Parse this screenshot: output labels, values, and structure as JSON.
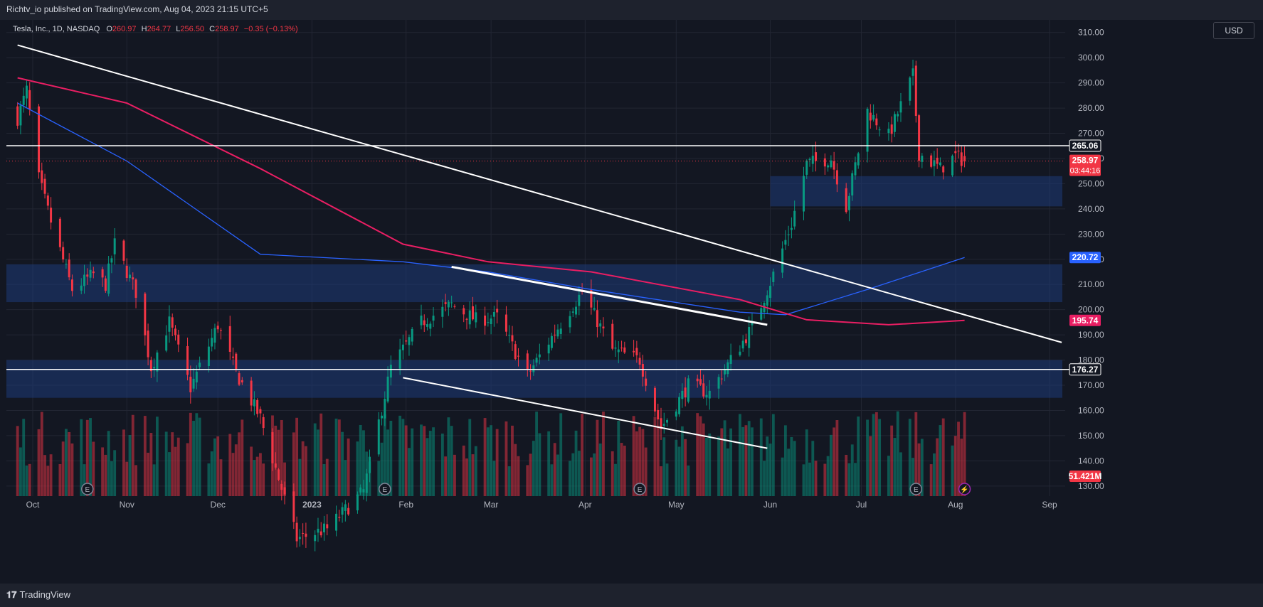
{
  "publication": "Richtv_io published on TradingView.com, Aug 04, 2023 21:15 UTC+5",
  "legend": {
    "symbol": "Tesla, Inc., 1D, NASDAQ",
    "o_label": "O",
    "o": "260.97",
    "h_label": "H",
    "h": "264.77",
    "l_label": "L",
    "l": "256.50",
    "c_label": "C",
    "c": "258.97",
    "chg": "−0.35 (−0.13%)"
  },
  "currency": "USD",
  "footer_brand": "TradingView",
  "colors": {
    "background": "#131722",
    "up": "#089981",
    "down": "#f23645",
    "ma_blue": "#2962ff",
    "ma_pink": "#e91e63",
    "zone": "#1e3a78",
    "grid": "#222633"
  },
  "chart_data": {
    "type": "candlestick",
    "symbol": "TSLA",
    "interval": "1D",
    "ylim": [
      126,
      315
    ],
    "y_ticks": [
      130,
      140,
      150,
      160,
      170,
      180,
      190,
      200,
      210,
      220,
      230,
      240,
      250,
      260,
      270,
      280,
      290,
      300,
      310
    ],
    "x_ticks": [
      {
        "label": "Oct",
        "date": "2022-10-01"
      },
      {
        "label": "Nov",
        "date": "2022-11-01"
      },
      {
        "label": "Dec",
        "date": "2022-12-01"
      },
      {
        "label": "2023",
        "date": "2023-01-01"
      },
      {
        "label": "Feb",
        "date": "2023-02-01"
      },
      {
        "label": "Mar",
        "date": "2023-03-01"
      },
      {
        "label": "Apr",
        "date": "2023-04-01"
      },
      {
        "label": "May",
        "date": "2023-05-01"
      },
      {
        "label": "Jun",
        "date": "2023-06-01"
      },
      {
        "label": "Jul",
        "date": "2023-07-01"
      },
      {
        "label": "Aug",
        "date": "2023-08-01"
      },
      {
        "label": "Sep",
        "date": "2023-09-01"
      }
    ],
    "ohlc_anchors": [
      {
        "date": "2022-09-26",
        "close": 276
      },
      {
        "date": "2022-09-29",
        "close": 287
      },
      {
        "date": "2022-10-03",
        "close": 252
      },
      {
        "date": "2022-10-07",
        "close": 235
      },
      {
        "date": "2022-10-14",
        "close": 208
      },
      {
        "date": "2022-10-21",
        "close": 214
      },
      {
        "date": "2022-10-25",
        "close": 210
      },
      {
        "date": "2022-10-28",
        "close": 226
      },
      {
        "date": "2022-11-04",
        "close": 207
      },
      {
        "date": "2022-11-09",
        "close": 177
      },
      {
        "date": "2022-11-15",
        "close": 195
      },
      {
        "date": "2022-11-22",
        "close": 169
      },
      {
        "date": "2022-12-01",
        "close": 194
      },
      {
        "date": "2022-12-07",
        "close": 175
      },
      {
        "date": "2022-12-15",
        "close": 157
      },
      {
        "date": "2022-12-27",
        "close": 109
      },
      {
        "date": "2023-01-06",
        "close": 113
      },
      {
        "date": "2023-01-18",
        "close": 128
      },
      {
        "date": "2023-01-27",
        "close": 177
      },
      {
        "date": "2023-02-06",
        "close": 195
      },
      {
        "date": "2023-02-16",
        "close": 202
      },
      {
        "date": "2023-02-24",
        "close": 196
      },
      {
        "date": "2023-03-03",
        "close": 197
      },
      {
        "date": "2023-03-13",
        "close": 174
      },
      {
        "date": "2023-03-22",
        "close": 191
      },
      {
        "date": "2023-03-31",
        "close": 207
      },
      {
        "date": "2023-04-10",
        "close": 184
      },
      {
        "date": "2023-04-19",
        "close": 180
      },
      {
        "date": "2023-04-26",
        "close": 153
      },
      {
        "date": "2023-05-05",
        "close": 170
      },
      {
        "date": "2023-05-12",
        "close": 167
      },
      {
        "date": "2023-05-19",
        "close": 180
      },
      {
        "date": "2023-05-26",
        "close": 193
      },
      {
        "date": "2023-06-02",
        "close": 214
      },
      {
        "date": "2023-06-08",
        "close": 234
      },
      {
        "date": "2023-06-13",
        "close": 258
      },
      {
        "date": "2023-06-21",
        "close": 260
      },
      {
        "date": "2023-06-26",
        "close": 241
      },
      {
        "date": "2023-07-03",
        "close": 279
      },
      {
        "date": "2023-07-10",
        "close": 269
      },
      {
        "date": "2023-07-18",
        "close": 293
      },
      {
        "date": "2023-07-20",
        "close": 262
      },
      {
        "date": "2023-07-27",
        "close": 256
      },
      {
        "date": "2023-08-01",
        "close": 261
      },
      {
        "date": "2023-08-04",
        "close": 258.97
      }
    ],
    "last_bar": {
      "open": 260.97,
      "high": 264.77,
      "low": 256.5,
      "close": 258.97
    },
    "indicators": [
      {
        "kind": "moving_average",
        "color": "blue",
        "last_value": 220.72,
        "points": [
          {
            "date": "2022-09-26",
            "value": 282
          },
          {
            "date": "2022-11-01",
            "value": 259
          },
          {
            "date": "2022-12-15",
            "value": 222
          },
          {
            "date": "2023-01-31",
            "value": 219
          },
          {
            "date": "2023-02-28",
            "value": 215
          },
          {
            "date": "2023-04-03",
            "value": 208
          },
          {
            "date": "2023-05-22",
            "value": 199
          },
          {
            "date": "2023-06-06",
            "value": 198
          },
          {
            "date": "2023-07-03",
            "value": 208
          },
          {
            "date": "2023-08-04",
            "value": 220.72
          }
        ]
      },
      {
        "kind": "moving_average",
        "color": "pink",
        "last_value": 195.74,
        "points": [
          {
            "date": "2022-09-26",
            "value": 292
          },
          {
            "date": "2022-11-01",
            "value": 282
          },
          {
            "date": "2022-12-15",
            "value": 256
          },
          {
            "date": "2023-01-31",
            "value": 226
          },
          {
            "date": "2023-02-28",
            "value": 219
          },
          {
            "date": "2023-04-03",
            "value": 215
          },
          {
            "date": "2023-05-22",
            "value": 204
          },
          {
            "date": "2023-06-13",
            "value": 196
          },
          {
            "date": "2023-07-10",
            "value": 194
          },
          {
            "date": "2023-08-04",
            "value": 195.74
          }
        ]
      }
    ],
    "horizontal_lines": [
      265.06,
      176.27
    ],
    "zones": [
      [
        203,
        218
      ],
      [
        165,
        180
      ],
      [
        241,
        253
      ]
    ],
    "trend_lines": [
      {
        "from": {
          "date": "2022-09-26",
          "value": 305
        },
        "to": {
          "date": "2023-09-05",
          "value": 187
        }
      },
      {
        "from": {
          "date": "2023-02-16",
          "value": 217
        },
        "to": {
          "date": "2023-05-31",
          "value": 194
        }
      },
      {
        "from": {
          "date": "2023-01-31",
          "value": 173
        },
        "to": {
          "date": "2023-05-31",
          "value": 145
        }
      }
    ],
    "price_labels": [
      {
        "text": "265.06",
        "style": "line"
      },
      {
        "text": "258.97",
        "sub": "03:44:16",
        "style": "down"
      },
      {
        "text": "220.72",
        "style": "blue"
      },
      {
        "text": "195.74",
        "style": "pink"
      },
      {
        "text": "176.27",
        "style": "line"
      },
      {
        "text": "51.421M",
        "style": "down"
      }
    ],
    "volume": {
      "last": "51.421M"
    },
    "event_markers": [
      {
        "date": "2022-10-19",
        "icon": "E"
      },
      {
        "date": "2023-01-25",
        "icon": "E"
      },
      {
        "date": "2023-04-19",
        "icon": "E"
      },
      {
        "date": "2023-07-19",
        "icon": "E"
      },
      {
        "date": "2023-08-04",
        "icon": "⚡"
      }
    ]
  }
}
